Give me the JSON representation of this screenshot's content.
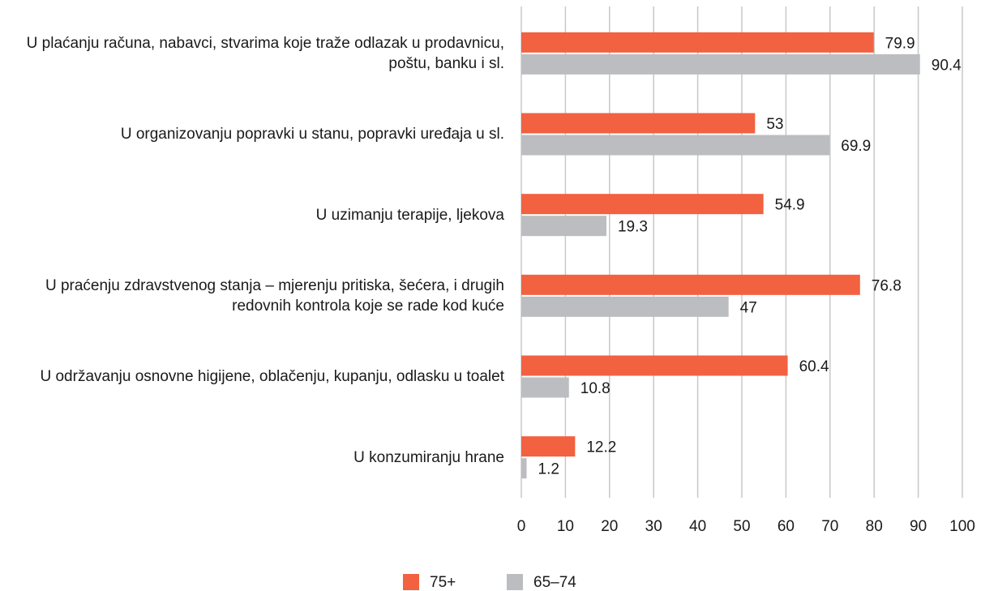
{
  "chart_data": {
    "type": "barh",
    "categories": [
      "U plaćanju računa, nabavci, stvarima koje traže odlazak u prodavnicu, poštu, banku i sl.",
      "U organizovanju popravki u stanu, popravki uređaja u sl.",
      "U uzimanju terapije, ljekova",
      "U praćenju zdravstvenog stanja – mjerenju pritiska, šećera, i drugih redovnih kontrola koje se rade kod kuće",
      "U održavanju osnovne higijene, oblačenju, kupanju, odlasku u toalet",
      "U konzumiranju hrane"
    ],
    "series": [
      {
        "name": "75+",
        "color": "#f26140",
        "values": [
          79.9,
          53,
          54.9,
          76.8,
          60.4,
          12.2
        ]
      },
      {
        "name": "65–74",
        "color": "#bcbdc0",
        "values": [
          90.4,
          69.9,
          19.3,
          47,
          10.8,
          1.2
        ]
      }
    ],
    "xlim": [
      0,
      100
    ],
    "xticks": [
      0,
      10,
      20,
      30,
      40,
      50,
      60,
      70,
      80,
      90,
      100
    ],
    "grid": true,
    "legend": "bottom"
  }
}
